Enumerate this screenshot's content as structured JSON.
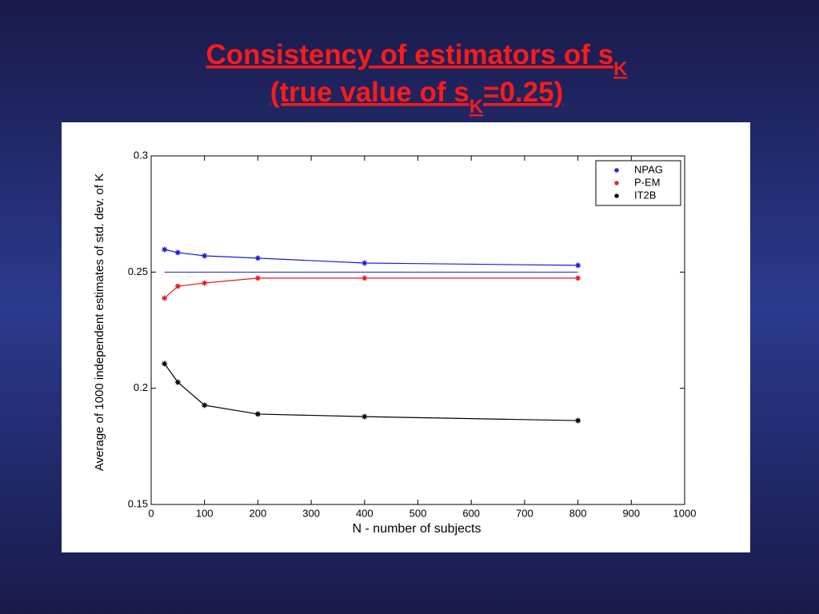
{
  "chart_data": {
    "type": "line",
    "title": {
      "line1": "Consistency of estimators of s",
      "line1_sub": "K",
      "line2": "(true value of s",
      "line2_sub": "K",
      "line2_end": "=0.25)"
    },
    "xlabel": "N - number of subjects",
    "ylabel": "Average of 1000 independent estimates of std. dev. of K",
    "x": [
      25,
      50,
      100,
      200,
      400,
      800
    ],
    "series": [
      {
        "name": "NPAG",
        "color": "#1a1adc",
        "values": [
          0.2597,
          0.2584,
          0.257,
          0.256,
          0.2539,
          0.2529
        ]
      },
      {
        "name": "P-EM",
        "color": "#e01a1a",
        "values": [
          0.2388,
          0.2439,
          0.2453,
          0.2474,
          0.2474,
          0.2474
        ]
      },
      {
        "name": "IT2B",
        "color": "#000000",
        "values": [
          0.2106,
          0.2026,
          0.1927,
          0.1889,
          0.1878,
          0.1861
        ]
      }
    ],
    "reference_value": 0.25,
    "reference_x": [
      25,
      800
    ],
    "xlim": [
      0,
      1000
    ],
    "xticks": [
      0,
      100,
      200,
      300,
      400,
      500,
      600,
      700,
      800,
      900,
      1000
    ],
    "ylim": [
      0.15,
      0.3
    ],
    "yticks": [
      0.15,
      0.2,
      0.25,
      0.3
    ],
    "grid": false,
    "legend": "upper right"
  }
}
